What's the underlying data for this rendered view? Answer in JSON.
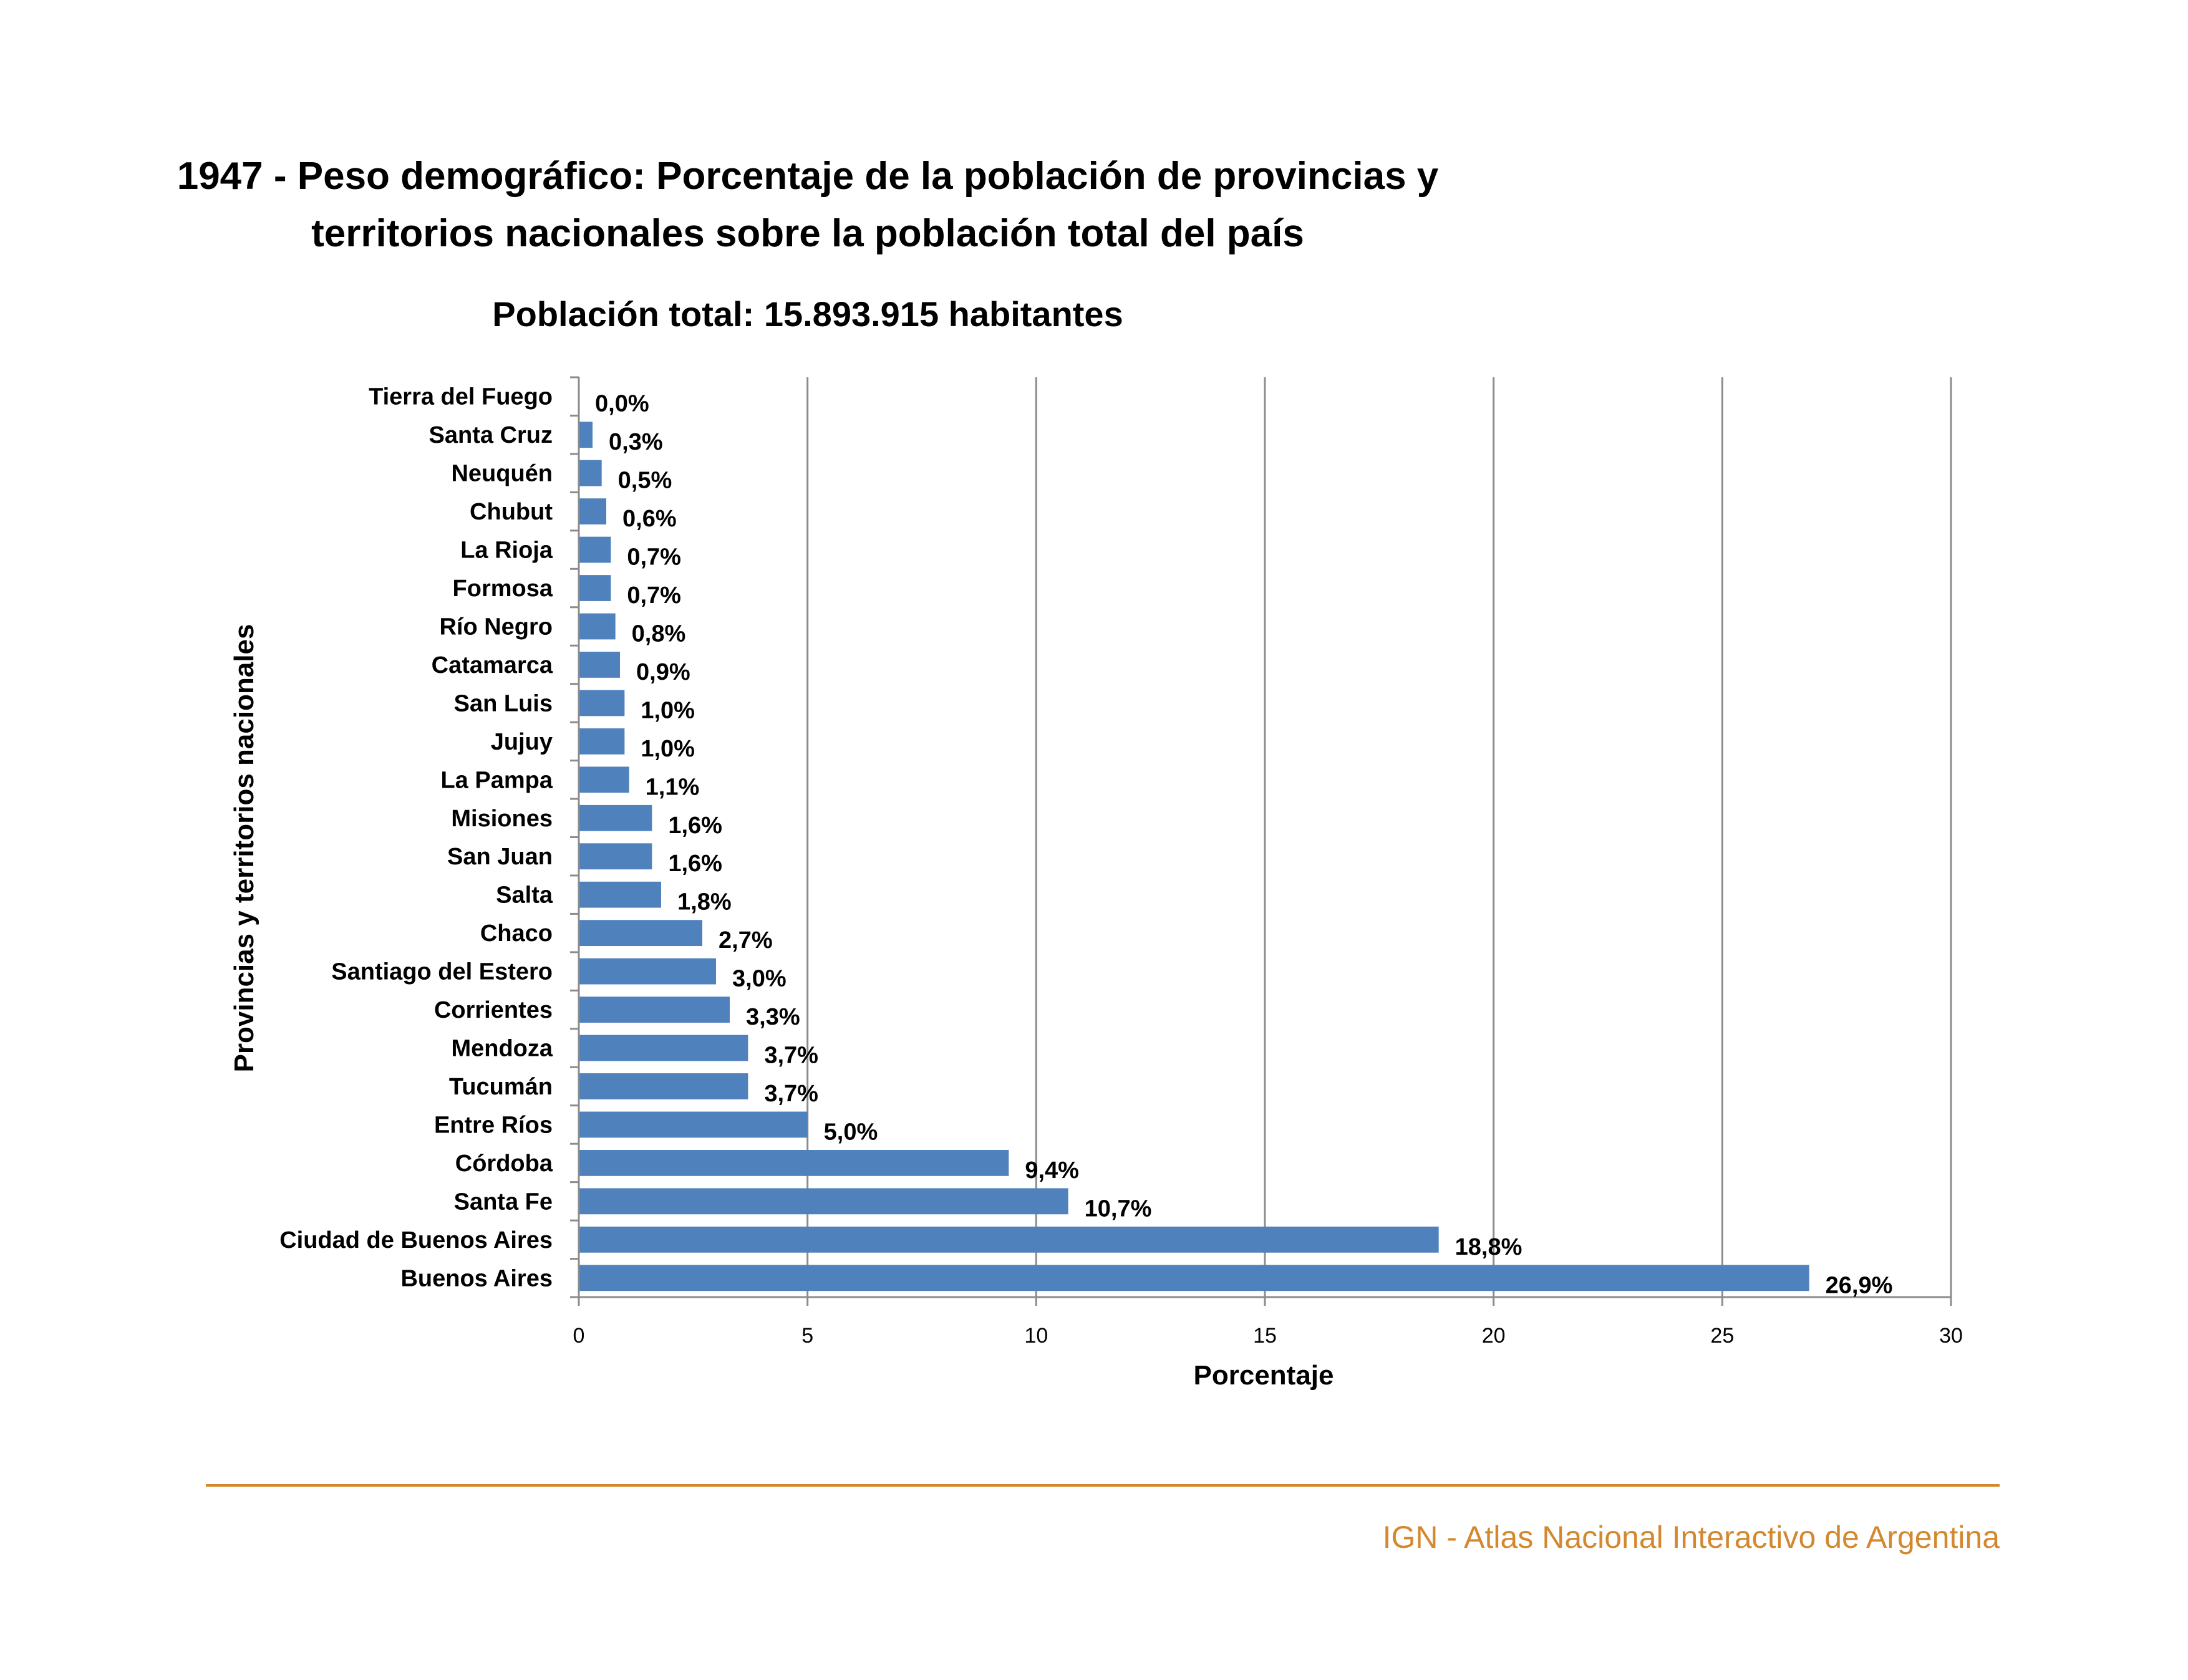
{
  "title_line1": "1947 - Peso demográfico: Porcentaje de la población de provincias y",
  "title_line2": "territorios nacionales sobre la población total del país",
  "subtitle": "Población total: 15.893.915 habitantes",
  "footer": {
    "text": "IGN - Atlas Nacional Interactivo de Argentina",
    "color": "#D4882E"
  },
  "chart_data": {
    "type": "bar",
    "orientation": "horizontal",
    "xlabel": "Porcentaje",
    "ylabel": "Provincias y territorios nacionales",
    "xlim": [
      0,
      30
    ],
    "xticks": [
      "0",
      "5",
      "10",
      "15",
      "20",
      "25",
      "30"
    ],
    "grid": "vertical",
    "bar_color": "#4F81BD",
    "categories": [
      "Tierra del Fuego",
      "Santa Cruz",
      "Neuquén",
      "Chubut",
      "La Rioja",
      "Formosa",
      "Río Negro",
      "Catamarca",
      "San Luis",
      "Jujuy",
      "La Pampa",
      "Misiones",
      "San Juan",
      "Salta",
      "Chaco",
      "Santiago del Estero",
      "Corrientes",
      "Mendoza",
      "Tucumán",
      "Entre Ríos",
      "Córdoba",
      "Santa Fe",
      "Ciudad de Buenos Aires",
      "Buenos Aires"
    ],
    "values": [
      0.0,
      0.3,
      0.5,
      0.6,
      0.7,
      0.7,
      0.8,
      0.9,
      1.0,
      1.0,
      1.1,
      1.6,
      1.6,
      1.8,
      2.7,
      3.0,
      3.3,
      3.7,
      3.7,
      5.0,
      9.4,
      10.7,
      18.8,
      26.9
    ],
    "value_labels": [
      "0,0%",
      "0,3%",
      "0,5%",
      "0,6%",
      "0,7%",
      "0,7%",
      "0,8%",
      "0,9%",
      "1,0%",
      "1,0%",
      "1,1%",
      "1,6%",
      "1,6%",
      "1,8%",
      "2,7%",
      "3,0%",
      "3,3%",
      "3,7%",
      "3,7%",
      "5,0%",
      "9,4%",
      "10,7%",
      "18,8%",
      "26,9%"
    ]
  }
}
